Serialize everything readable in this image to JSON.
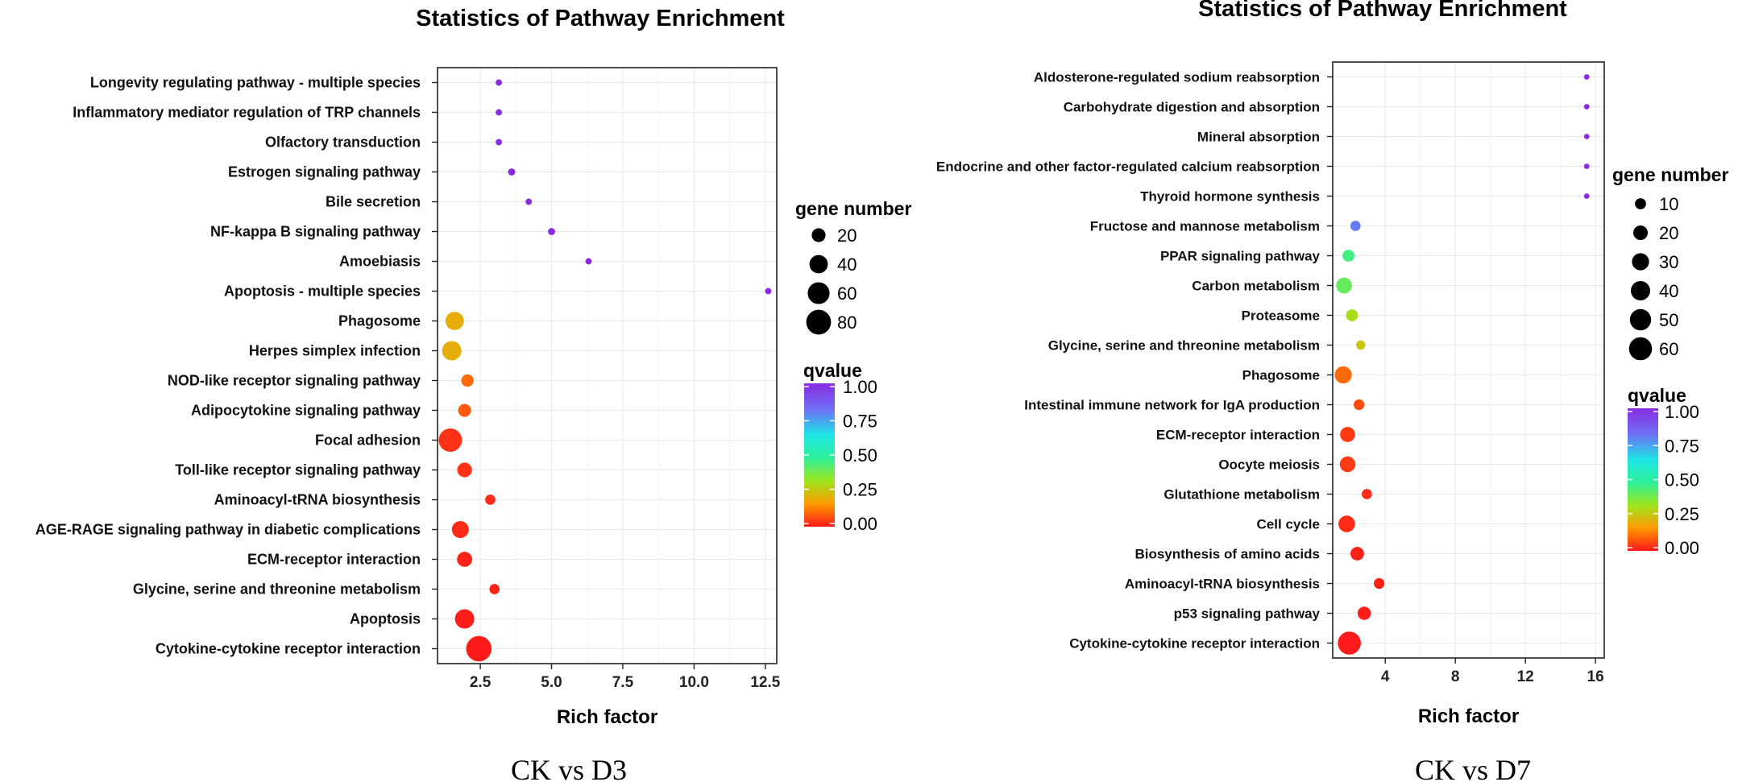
{
  "chart_data": [
    {
      "type": "scatter",
      "title": "Statistics of Pathway Enrichment",
      "xlabel": "Rich factor",
      "ylabel": "",
      "caption": "CK vs D3",
      "xlim": [
        1.0,
        12.9
      ],
      "xticks": [
        2.5,
        5.0,
        7.5,
        10.0,
        12.5
      ],
      "xtick_labels": [
        "2.5",
        "5.0",
        "7.5",
        "10.0",
        "12.5"
      ],
      "grid": true,
      "size_legend": {
        "title": "gene number",
        "values": [
          20,
          40,
          60,
          80
        ],
        "labels": [
          "20",
          "40",
          "60",
          "80"
        ]
      },
      "color_legend": {
        "title": "qvalue",
        "ticks": [
          0.0,
          0.25,
          0.5,
          0.75,
          1.0
        ],
        "labels": [
          "1.00",
          "0.75",
          "0.50",
          "0.25",
          "0.00"
        ]
      },
      "points": [
        {
          "pathway": "Longevity regulating pathway - multiple species",
          "rich_factor": 3.15,
          "gene_number": 2,
          "qvalue": 1.0
        },
        {
          "pathway": "Inflammatory mediator regulation of TRP channels",
          "rich_factor": 3.15,
          "gene_number": 2,
          "qvalue": 1.0
        },
        {
          "pathway": "Olfactory transduction",
          "rich_factor": 3.15,
          "gene_number": 2,
          "qvalue": 1.0
        },
        {
          "pathway": "Estrogen signaling pathway",
          "rich_factor": 3.6,
          "gene_number": 3,
          "qvalue": 1.0
        },
        {
          "pathway": "Bile secretion",
          "rich_factor": 4.2,
          "gene_number": 2,
          "qvalue": 1.0
        },
        {
          "pathway": "NF-kappa B signaling pathway",
          "rich_factor": 5.0,
          "gene_number": 3,
          "qvalue": 1.0
        },
        {
          "pathway": "Amoebiasis",
          "rich_factor": 6.3,
          "gene_number": 2,
          "qvalue": 1.0
        },
        {
          "pathway": "Apoptosis - multiple species",
          "rich_factor": 12.6,
          "gene_number": 2,
          "qvalue": 1.0
        },
        {
          "pathway": "Phagosome",
          "rich_factor": 1.6,
          "gene_number": 40,
          "qvalue": 0.2
        },
        {
          "pathway": "Herpes simplex infection",
          "rich_factor": 1.5,
          "gene_number": 45,
          "qvalue": 0.2
        },
        {
          "pathway": "NOD-like receptor signaling pathway",
          "rich_factor": 2.05,
          "gene_number": 15,
          "qvalue": 0.1
        },
        {
          "pathway": "Adipocytokine signaling pathway",
          "rich_factor": 1.95,
          "gene_number": 17,
          "qvalue": 0.08
        },
        {
          "pathway": "Focal adhesion",
          "rich_factor": 1.45,
          "gene_number": 70,
          "qvalue": 0.03
        },
        {
          "pathway": "Toll-like receptor signaling pathway",
          "rich_factor": 1.95,
          "gene_number": 23,
          "qvalue": 0.03
        },
        {
          "pathway": "Aminoacyl-tRNA biosynthesis",
          "rich_factor": 2.85,
          "gene_number": 9,
          "qvalue": 0.02
        },
        {
          "pathway": "AGE-RAGE signaling pathway in diabetic complications",
          "rich_factor": 1.8,
          "gene_number": 33,
          "qvalue": 0.02
        },
        {
          "pathway": "ECM-receptor interaction",
          "rich_factor": 1.95,
          "gene_number": 25,
          "qvalue": 0.01
        },
        {
          "pathway": "Glycine, serine and threonine metabolism",
          "rich_factor": 3.0,
          "gene_number": 9,
          "qvalue": 0.01
        },
        {
          "pathway": "Apoptosis",
          "rich_factor": 1.95,
          "gene_number": 45,
          "qvalue": 0.005
        },
        {
          "pathway": "Cytokine-cytokine receptor interaction",
          "rich_factor": 2.45,
          "gene_number": 85,
          "qvalue": 0.001
        }
      ]
    },
    {
      "type": "scatter",
      "title": "Statistics of Pathway Enrichment",
      "xlabel": "Rich factor",
      "ylabel": "",
      "caption": "CK vs D7",
      "xlim": [
        1.0,
        16.5
      ],
      "xticks": [
        4,
        8,
        12,
        16
      ],
      "xtick_labels": [
        "4",
        "8",
        "12",
        "16"
      ],
      "grid": true,
      "size_legend": {
        "title": "gene number",
        "values": [
          10,
          20,
          30,
          40,
          50,
          60
        ],
        "labels": [
          "10",
          "20",
          "30",
          "40",
          "50",
          "60"
        ]
      },
      "color_legend": {
        "title": "qvalue",
        "ticks": [
          0.0,
          0.25,
          0.5,
          0.75,
          1.0
        ],
        "labels": [
          "1.00",
          "0.75",
          "0.50",
          "0.25",
          "0.00"
        ]
      },
      "points": [
        {
          "pathway": "Aldosterone-regulated sodium reabsorption",
          "rich_factor": 15.5,
          "gene_number": 1,
          "qvalue": 1.0
        },
        {
          "pathway": "Carbohydrate digestion and absorption",
          "rich_factor": 15.5,
          "gene_number": 1,
          "qvalue": 1.0
        },
        {
          "pathway": "Mineral absorption",
          "rich_factor": 15.5,
          "gene_number": 1,
          "qvalue": 1.0
        },
        {
          "pathway": "Endocrine and other factor-regulated calcium reabsorption",
          "rich_factor": 15.5,
          "gene_number": 1,
          "qvalue": 1.0
        },
        {
          "pathway": "Thyroid hormone synthesis",
          "rich_factor": 15.5,
          "gene_number": 1,
          "qvalue": 1.0
        },
        {
          "pathway": "Fructose and mannose metabolism",
          "rich_factor": 2.3,
          "gene_number": 8,
          "qvalue": 0.8
        },
        {
          "pathway": "PPAR signaling pathway",
          "rich_factor": 1.9,
          "gene_number": 12,
          "qvalue": 0.45
        },
        {
          "pathway": "Carbon metabolism",
          "rich_factor": 1.65,
          "gene_number": 25,
          "qvalue": 0.4
        },
        {
          "pathway": "Proteasome",
          "rich_factor": 2.1,
          "gene_number": 12,
          "qvalue": 0.3
        },
        {
          "pathway": "Glycine, serine and threonine metabolism",
          "rich_factor": 2.6,
          "gene_number": 6,
          "qvalue": 0.25
        },
        {
          "pathway": "Phagosome",
          "rich_factor": 1.6,
          "gene_number": 30,
          "qvalue": 0.1
        },
        {
          "pathway": "Intestinal immune network for IgA production",
          "rich_factor": 2.5,
          "gene_number": 9,
          "qvalue": 0.06
        },
        {
          "pathway": "ECM-receptor interaction",
          "rich_factor": 1.85,
          "gene_number": 22,
          "qvalue": 0.04
        },
        {
          "pathway": "Oocyte meiosis",
          "rich_factor": 1.85,
          "gene_number": 24,
          "qvalue": 0.04
        },
        {
          "pathway": "Glutathione metabolism",
          "rich_factor": 2.95,
          "gene_number": 8,
          "qvalue": 0.02
        },
        {
          "pathway": "Cell cycle",
          "rich_factor": 1.8,
          "gene_number": 28,
          "qvalue": 0.02
        },
        {
          "pathway": "Biosynthesis of amino acids",
          "rich_factor": 2.4,
          "gene_number": 17,
          "qvalue": 0.01
        },
        {
          "pathway": "Aminoacyl-tRNA biosynthesis",
          "rich_factor": 3.65,
          "gene_number": 9,
          "qvalue": 0.01
        },
        {
          "pathway": "p53 signaling pathway",
          "rich_factor": 2.8,
          "gene_number": 16,
          "qvalue": 0.005
        },
        {
          "pathway": "Cytokine-cytokine receptor interaction",
          "rich_factor": 1.95,
          "gene_number": 60,
          "qvalue": 0.001
        }
      ]
    }
  ]
}
